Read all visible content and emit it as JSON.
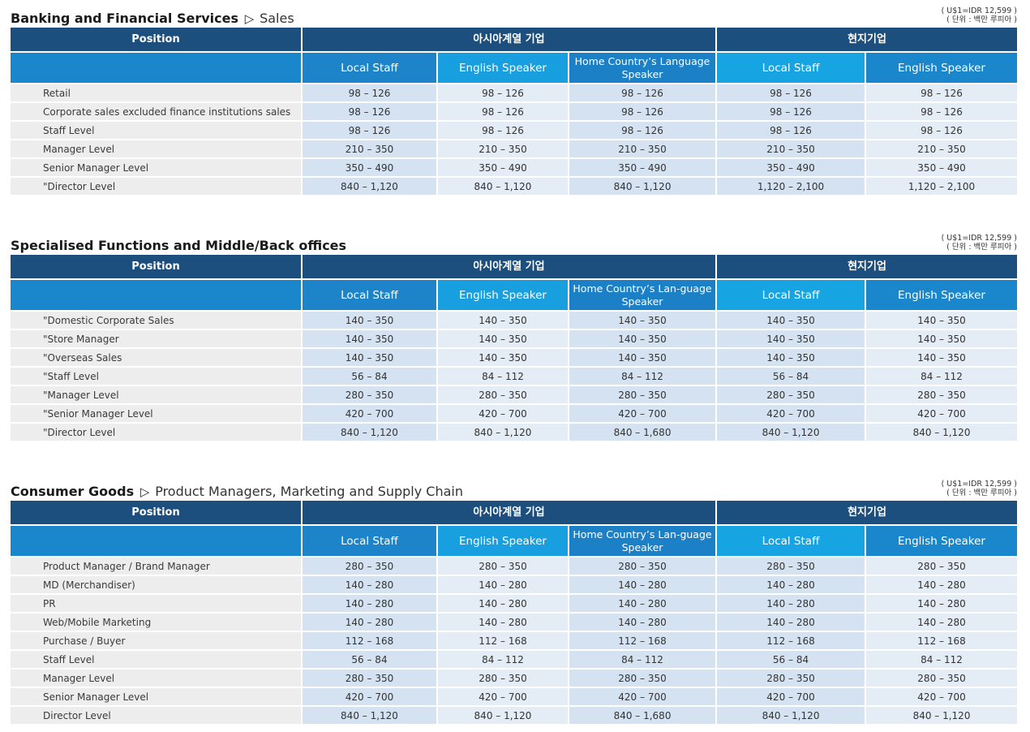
{
  "sections": [
    {
      "title_bold": "Banking and Financial Services",
      "title_sub": "Sales",
      "note_line1": "( U$1=IDR 12,599 )",
      "note_line2": "( 단위 : 백만 루피아 )",
      "header": {
        "position": "Position",
        "group1": "아시아계열 기업",
        "group2": "현지기업",
        "local_staff_1": "Local Staff",
        "english_speaker_1": "English Speaker",
        "home_country": "Home Country’s Language Speaker",
        "local_staff_2": "Local Staff",
        "english_speaker_2": "English Speaker"
      },
      "rows": [
        {
          "position": "Retail",
          "values": [
            "98 – 126",
            "98 – 126",
            "98 – 126",
            "98 – 126",
            "98 – 126"
          ]
        },
        {
          "position": "Corporate sales excluded finance institutions sales",
          "values": [
            "98 – 126",
            "98 – 126",
            "98 – 126",
            "98 – 126",
            "98 – 126"
          ]
        },
        {
          "position": "Staff Level",
          "values": [
            "98 – 126",
            "98 – 126",
            "98 – 126",
            "98 – 126",
            "98 – 126"
          ]
        },
        {
          "position": "Manager Level",
          "values": [
            "210 – 350",
            "210 – 350",
            "210 – 350",
            "210 – 350",
            "210 – 350"
          ]
        },
        {
          "position": "Senior Manager Level",
          "values": [
            "350 – 490",
            "350 – 490",
            "350 – 490",
            "350 – 490",
            "350 – 490"
          ]
        },
        {
          "position": "\"Director Level",
          "values": [
            "840 – 1,120",
            "840 – 1,120",
            "840 – 1,120",
            "1,120 – 2,100",
            "1,120 – 2,100"
          ]
        }
      ]
    },
    {
      "title_bold": "Specialised Functions and Middle/Back offices",
      "title_sub": "",
      "note_line1": "( U$1=IDR 12,599 )",
      "note_line2": "( 단위 : 백만 루피아 )",
      "header": {
        "position": "Position",
        "group1": "아시아계열 기업",
        "group2": "현지기업",
        "local_staff_1": "Local Staff",
        "english_speaker_1": "English Speaker",
        "home_country": "Home Country’s Lan-guage Speaker",
        "local_staff_2": "Local Staff",
        "english_speaker_2": "English Speaker"
      },
      "rows": [
        {
          "position": "\"Domestic Corporate Sales",
          "values": [
            "140 – 350",
            "140 – 350",
            "140 – 350",
            "140 – 350",
            "140 – 350"
          ]
        },
        {
          "position": "\"Store Manager",
          "values": [
            "140 – 350",
            "140 – 350",
            "140 – 350",
            "140 – 350",
            "140 – 350"
          ]
        },
        {
          "position": "\"Overseas Sales",
          "values": [
            "140 – 350",
            "140 – 350",
            "140 – 350",
            "140 – 350",
            "140 – 350"
          ]
        },
        {
          "position": "\"Staff Level",
          "values": [
            "56 – 84",
            "84 – 112",
            "84 – 112",
            "56 – 84",
            "84 – 112"
          ]
        },
        {
          "position": "\"Manager Level",
          "values": [
            "280 – 350",
            "280 – 350",
            "280 – 350",
            "280 – 350",
            "280 – 350"
          ]
        },
        {
          "position": "\"Senior Manager Level",
          "values": [
            "420 – 700",
            "420 – 700",
            "420 – 700",
            "420 – 700",
            "420 – 700"
          ]
        },
        {
          "position": "\"Director Level",
          "values": [
            "840 – 1,120",
            "840 – 1,120",
            "840 – 1,680",
            "840 – 1,120",
            "840 – 1,120"
          ]
        }
      ]
    },
    {
      "title_bold": "Consumer Goods",
      "title_sub": "Product Managers, Marketing and Supply Chain",
      "note_line1": "( U$1=IDR 12,599 )",
      "note_line2": "( 단위 : 백만 루피아 )",
      "header": {
        "position": "Position",
        "group1": "아시아계열 기업",
        "group2": "현지기업",
        "local_staff_1": "Local Staff",
        "english_speaker_1": "English Speaker",
        "home_country": "Home Country’s Lan-guage Speaker",
        "local_staff_2": "Local Staff",
        "english_speaker_2": "English Speaker"
      },
      "rows": [
        {
          "position": "Product Manager / Brand Manager",
          "values": [
            "280 – 350",
            "280 – 350",
            "280 – 350",
            "280 – 350",
            "280 – 350"
          ]
        },
        {
          "position": "MD (Merchandiser)",
          "values": [
            "140 – 280",
            "140 – 280",
            "140 – 280",
            "140 – 280",
            "140 – 280"
          ]
        },
        {
          "position": "PR",
          "values": [
            "140 – 280",
            "140 – 280",
            "140 – 280",
            "140 – 280",
            "140 – 280"
          ]
        },
        {
          "position": "Web/Mobile Marketing",
          "values": [
            "140 – 280",
            "140 – 280",
            "140 – 280",
            "140 – 280",
            "140 – 280"
          ]
        },
        {
          "position": "Purchase / Buyer",
          "values": [
            "112 – 168",
            "112 – 168",
            "112 – 168",
            "112 – 168",
            "112 – 168"
          ]
        },
        {
          "position": "Staff Level",
          "values": [
            "56 – 84",
            "84 – 112",
            "84 – 112",
            "56 – 84",
            "84 – 112"
          ]
        },
        {
          "position": "Manager Level",
          "values": [
            "280 – 350",
            "280 – 350",
            "280 – 350",
            "280 – 350",
            "280 – 350"
          ]
        },
        {
          "position": "Senior Manager Level",
          "values": [
            "420 – 700",
            "420 – 700",
            "420 – 700",
            "420 – 700",
            "420 – 700"
          ]
        },
        {
          "position": "Director Level",
          "values": [
            "840 – 1,120",
            "840 – 1,120",
            "840 – 1,680",
            "840 – 1,120",
            "840 – 1,120"
          ]
        }
      ]
    }
  ]
}
